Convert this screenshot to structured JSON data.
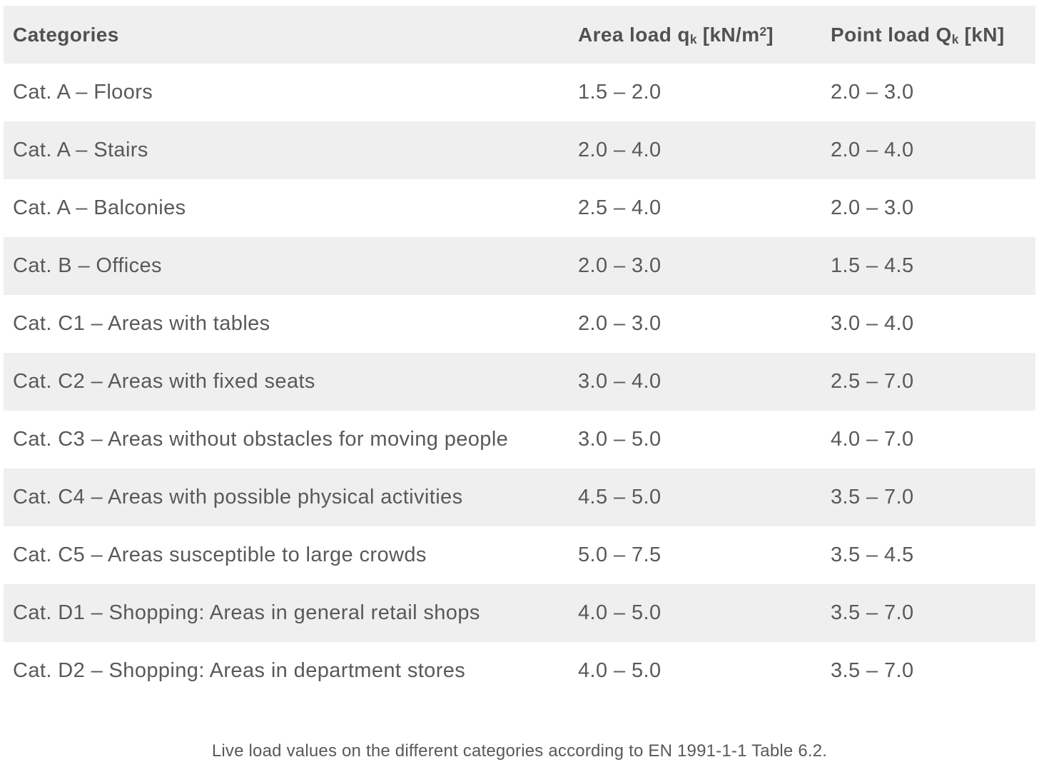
{
  "caption": "Live load values on the different categories according to EN 1991-1-1 Table 6.2.",
  "header_parts": {
    "categories": "Categories",
    "area_load": {
      "text": "Area load q",
      "sub": "k",
      "unit_open": " [kN/m",
      "sup": "2",
      "unit_close": "]"
    },
    "point_load": {
      "text": "Point load Q",
      "sub": "k",
      "unit": " [kN]"
    }
  },
  "colors": {
    "stripe": "#f0efef",
    "body_text": "#58595b",
    "header_text": "#515154"
  },
  "chart_data": {
    "type": "table",
    "title": "Live load values on the different categories according to EN 1991-1-1 Table 6.2.",
    "columns": [
      "Categories",
      "Area load qk [kN/m2]",
      "Point load Qk [kN]"
    ],
    "rows": [
      [
        "Cat. A – Floors",
        "1.5 – 2.0",
        "2.0 – 3.0"
      ],
      [
        "Cat. A – Stairs",
        "2.0 – 4.0",
        "2.0 – 4.0"
      ],
      [
        "Cat. A – Balconies",
        "2.5 – 4.0",
        "2.0 – 3.0"
      ],
      [
        "Cat. B – Offices",
        "2.0 – 3.0",
        "1.5 – 4.5"
      ],
      [
        "Cat. C1 – Areas with tables",
        "2.0 – 3.0",
        "3.0 – 4.0"
      ],
      [
        "Cat. C2 – Areas with fixed seats",
        "3.0 – 4.0",
        "2.5 – 7.0"
      ],
      [
        "Cat. C3 – Areas without obstacles for moving people",
        "3.0 – 5.0",
        "4.0 – 7.0"
      ],
      [
        "Cat. C4 – Areas with possible physical activities",
        "4.5 – 5.0",
        "3.5 – 7.0"
      ],
      [
        "Cat. C5 – Areas susceptible to large crowds",
        "5.0 – 7.5",
        "3.5 – 4.5"
      ],
      [
        "Cat. D1 – Shopping: Areas in general retail shops",
        "4.0 – 5.0",
        "3.5 – 7.0"
      ],
      [
        "Cat. D2 – Shopping: Areas in department stores",
        "4.0 – 5.0",
        "3.5 – 7.0"
      ]
    ]
  }
}
